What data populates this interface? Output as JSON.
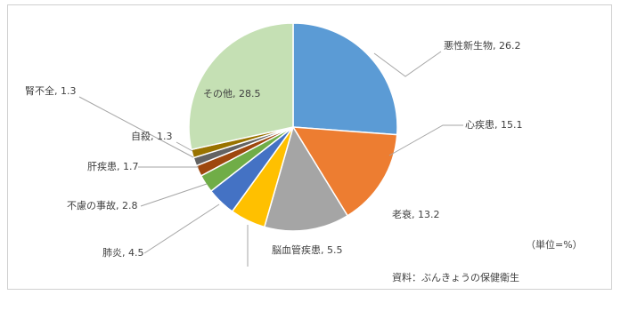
{
  "chart_data": {
    "type": "pie",
    "values": [
      26.2,
      15.1,
      13.2,
      5.5,
      4.5,
      2.8,
      1.7,
      1.3,
      1.3,
      28.5
    ],
    "value_labels": [
      "悪性新生物, 26.2",
      "心疾患, 15.1",
      "老衰, 13.2",
      "脳血管疾患, 5.5",
      "肺炎, 4.5",
      "不慮の事故, 2.8",
      "肝疾患, 1.7",
      "腎不全, 1.3",
      "自殺, 1.3",
      "その他, 28.5"
    ],
    "colors": [
      "#5b9bd5",
      "#ed7d31",
      "#a5a5a5",
      "#ffc000",
      "#4472c4",
      "#70ad47",
      "#9e480e",
      "#636363",
      "#997300",
      "#c5e0b4"
    ],
    "unit_note": "（単位=%）",
    "source": "資料：ぶんきょうの保健衛生"
  }
}
